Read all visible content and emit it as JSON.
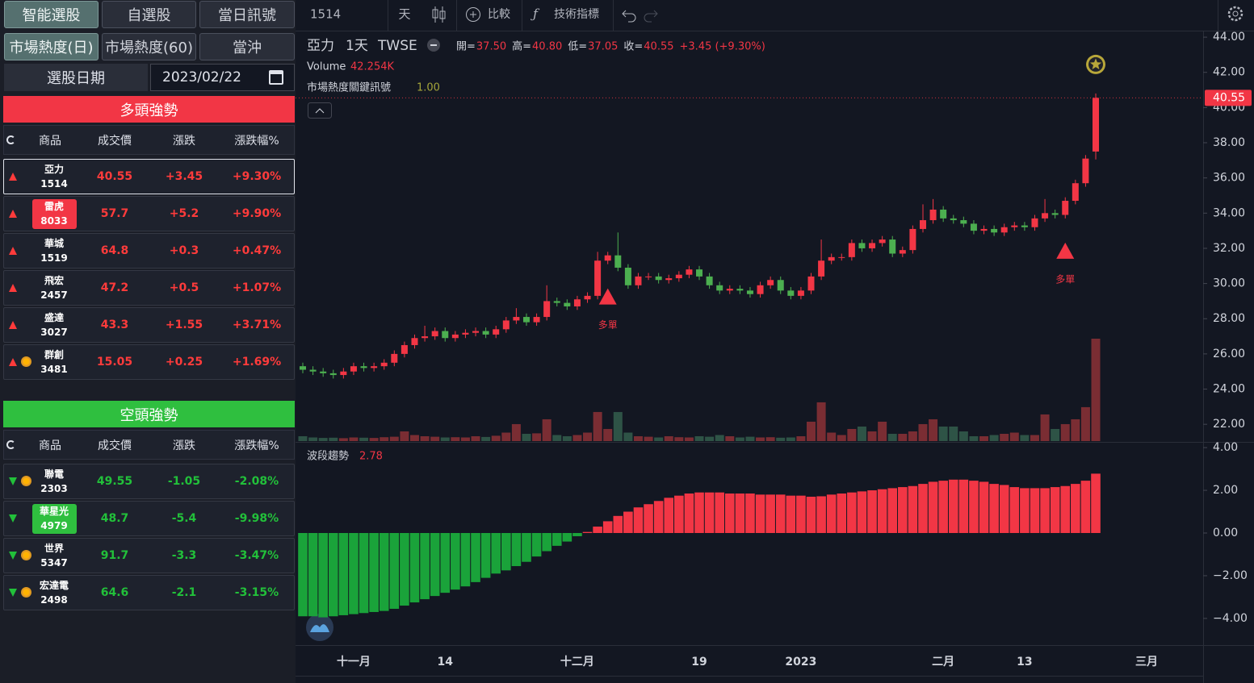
{
  "tabs": [
    {
      "label": "智能選股",
      "active": true
    },
    {
      "label": "自選股"
    },
    {
      "label": "當日訊號"
    },
    {
      "label": "市場熱度(日)",
      "active": true
    },
    {
      "label": "市場熱度(60)"
    },
    {
      "label": "當沖"
    }
  ],
  "date_picker": {
    "label": "選股日期",
    "value": "2023/02/22"
  },
  "bull": {
    "title": "多頭強勢",
    "columns": [
      "商品",
      "成交價",
      "漲跌",
      "漲跌幅%"
    ],
    "rows": [
      {
        "name": "亞力",
        "code": "1514",
        "price": "40.55",
        "change": "+3.45",
        "pct": "+9.30%",
        "selected": true
      },
      {
        "name": "雷虎",
        "code": "8033",
        "price": "57.7",
        "change": "+5.2",
        "pct": "+9.90%",
        "highlight": true
      },
      {
        "name": "華城",
        "code": "1519",
        "price": "64.8",
        "change": "+0.3",
        "pct": "+0.47%"
      },
      {
        "name": "飛宏",
        "code": "2457",
        "price": "47.2",
        "change": "+0.5",
        "pct": "+1.07%"
      },
      {
        "name": "盛達",
        "code": "3027",
        "price": "43.3",
        "change": "+1.55",
        "pct": "+3.71%"
      },
      {
        "name": "群創",
        "code": "3481",
        "price": "15.05",
        "change": "+0.25",
        "pct": "+1.69%",
        "icon": "sun"
      }
    ]
  },
  "bear": {
    "title": "空頭強勢",
    "columns": [
      "商品",
      "成交價",
      "漲跌",
      "漲跌幅%"
    ],
    "rows": [
      {
        "name": "聯電",
        "code": "2303",
        "price": "49.55",
        "change": "-1.05",
        "pct": "-2.08%",
        "icon": "sun"
      },
      {
        "name": "華星光",
        "code": "4979",
        "price": "48.7",
        "change": "-5.4",
        "pct": "-9.98%",
        "highlight": true
      },
      {
        "name": "世界",
        "code": "5347",
        "price": "91.7",
        "change": "-3.3",
        "pct": "-3.47%",
        "icon": "sun"
      },
      {
        "name": "宏達電",
        "code": "2498",
        "price": "64.6",
        "change": "-2.1",
        "pct": "-3.15%",
        "icon": "sun"
      }
    ]
  },
  "toolbar": {
    "symbol": "1514",
    "interval": "天",
    "compare": "比較",
    "indicators": "技術指標"
  },
  "chart_data": {
    "type": "candlestick",
    "legend": {
      "symbol": "亞力",
      "interval": "1天",
      "exchange": "TWSE",
      "fields": [
        {
          "label": "開=",
          "value": "37.50"
        },
        {
          "label": "高=",
          "value": "40.80"
        },
        {
          "label": "低=",
          "value": "37.05"
        },
        {
          "label": "收=",
          "value": "40.55"
        }
      ],
      "change": "+3.45 (+9.30%)"
    },
    "categories": [
      null,
      null,
      null,
      null,
      null,
      "十一月",
      null,
      null,
      null,
      null,
      null,
      null,
      null,
      null,
      "14",
      null,
      null,
      null,
      null,
      null,
      null,
      null,
      null,
      null,
      null,
      null,
      null,
      "十二月",
      null,
      null,
      null,
      null,
      null,
      null,
      null,
      null,
      null,
      null,
      null,
      "19",
      null,
      null,
      null,
      null,
      null,
      null,
      null,
      null,
      null,
      "2023",
      null,
      null,
      null,
      null,
      null,
      null,
      null,
      null,
      null,
      null,
      null,
      null,
      null,
      "二月",
      null,
      null,
      null,
      null,
      null,
      null,
      null,
      "13",
      null,
      null,
      null,
      null,
      null,
      null,
      null,
      null,
      null,
      null,
      null,
      "三月"
    ],
    "open": [
      25.3,
      25.1,
      25.0,
      24.9,
      24.8,
      25.0,
      25.3,
      25.2,
      25.3,
      25.5,
      26.0,
      26.5,
      26.9,
      27.0,
      27.3,
      26.9,
      27.1,
      27.2,
      27.3,
      27.1,
      27.4,
      27.9,
      28.1,
      27.8,
      28.1,
      29.0,
      28.9,
      28.7,
      29.1,
      29.3,
      31.3,
      31.6,
      30.9,
      29.9,
      30.4,
      30.4,
      30.2,
      30.3,
      30.5,
      30.8,
      30.4,
      29.9,
      29.6,
      29.7,
      29.6,
      29.4,
      29.9,
      30.2,
      29.6,
      29.3,
      29.6,
      30.4,
      31.3,
      31.5,
      31.5,
      32.3,
      32.0,
      32.3,
      32.5,
      31.7,
      31.9,
      33.1,
      33.6,
      34.2,
      33.7,
      33.6,
      33.4,
      33.0,
      33.1,
      32.9,
      33.2,
      33.3,
      33.2,
      33.7,
      34.0,
      33.9,
      34.7,
      35.7,
      37.5,
      null,
      null,
      null,
      null,
      null
    ],
    "high": [
      25.5,
      25.3,
      25.2,
      25.1,
      25.2,
      25.5,
      25.5,
      25.5,
      25.7,
      26.2,
      26.7,
      27.1,
      27.6,
      27.5,
      27.5,
      27.3,
      27.4,
      27.5,
      27.5,
      27.6,
      28.1,
      28.6,
      28.3,
      28.3,
      29.9,
      29.2,
      29.1,
      29.3,
      29.5,
      31.8,
      31.8,
      32.9,
      31.1,
      30.6,
      30.6,
      30.6,
      30.5,
      30.7,
      31.0,
      31.0,
      30.6,
      30.1,
      29.9,
      29.9,
      29.8,
      30.1,
      30.4,
      30.4,
      29.8,
      29.8,
      30.6,
      32.5,
      31.7,
      31.7,
      32.5,
      32.5,
      32.5,
      32.7,
      32.7,
      32.1,
      33.3,
      34.5,
      34.8,
      34.4,
      33.9,
      33.8,
      33.6,
      33.3,
      33.3,
      33.4,
      33.5,
      33.5,
      33.9,
      34.8,
      34.2,
      34.9,
      35.9,
      37.3,
      40.8,
      null,
      null,
      null,
      null,
      null
    ],
    "low": [
      24.9,
      24.8,
      24.7,
      24.6,
      24.6,
      24.8,
      25.0,
      25.0,
      25.1,
      25.3,
      25.8,
      26.3,
      26.7,
      26.8,
      26.7,
      26.7,
      26.9,
      27.0,
      26.9,
      26.9,
      27.2,
      27.7,
      27.6,
      27.6,
      27.9,
      28.7,
      28.5,
      28.5,
      28.9,
      29.1,
      31.1,
      30.7,
      29.7,
      29.7,
      30.2,
      30.0,
      30.0,
      30.1,
      30.3,
      30.2,
      29.7,
      29.4,
      29.4,
      29.4,
      29.2,
      29.2,
      29.7,
      29.4,
      29.1,
      29.1,
      29.4,
      30.2,
      31.1,
      31.3,
      31.3,
      31.8,
      31.8,
      32.1,
      31.5,
      31.5,
      31.7,
      32.9,
      33.4,
      33.5,
      33.4,
      33.2,
      32.8,
      32.8,
      32.7,
      32.7,
      33.0,
      33.0,
      33.0,
      33.5,
      33.7,
      33.7,
      34.5,
      35.5,
      37.05,
      null,
      null,
      null,
      null,
      null
    ],
    "close": [
      25.1,
      25.0,
      24.9,
      24.8,
      25.0,
      25.3,
      25.2,
      25.3,
      25.5,
      26.0,
      26.5,
      26.9,
      27.0,
      27.3,
      26.9,
      27.1,
      27.2,
      27.3,
      27.1,
      27.4,
      27.9,
      28.1,
      27.8,
      28.1,
      29.0,
      28.9,
      28.7,
      29.1,
      29.3,
      31.3,
      31.6,
      30.9,
      29.9,
      30.4,
      30.4,
      30.2,
      30.3,
      30.5,
      30.8,
      30.4,
      29.9,
      29.6,
      29.7,
      29.6,
      29.4,
      29.9,
      30.2,
      29.6,
      29.3,
      29.6,
      30.4,
      31.3,
      31.5,
      31.5,
      32.3,
      32.0,
      32.3,
      32.5,
      31.7,
      31.9,
      33.1,
      33.6,
      34.2,
      33.7,
      33.6,
      33.4,
      33.0,
      33.1,
      32.9,
      33.2,
      33.3,
      33.2,
      33.7,
      34.0,
      33.9,
      34.7,
      35.7,
      37.1,
      40.55,
      null,
      null,
      null,
      null,
      null
    ],
    "up_color": "#f23645",
    "down_color": "#4caf50",
    "ylim": [
      21.0,
      44.37
    ],
    "yticks": [
      {
        "value": 44,
        "label": "44.00"
      },
      {
        "value": 42,
        "label": "42.00"
      },
      {
        "value": 40,
        "label": "40.00"
      },
      {
        "value": 38,
        "label": "38.00"
      },
      {
        "value": 36,
        "label": "36.00"
      },
      {
        "value": 34,
        "label": "34.00"
      },
      {
        "value": 32,
        "label": "32.00"
      },
      {
        "value": 30,
        "label": "30.00"
      },
      {
        "value": 28,
        "label": "28.00"
      },
      {
        "value": 26,
        "label": "26.00"
      },
      {
        "value": 24,
        "label": "24.00"
      },
      {
        "value": 22,
        "label": "22.00"
      }
    ],
    "signals": [
      null,
      null,
      null,
      null,
      null,
      null,
      null,
      null,
      null,
      null,
      null,
      null,
      null,
      null,
      null,
      null,
      null,
      null,
      null,
      null,
      null,
      null,
      null,
      null,
      null,
      null,
      null,
      null,
      null,
      null,
      "多單",
      null,
      null,
      null,
      null,
      null,
      null,
      null,
      null,
      null,
      null,
      null,
      null,
      null,
      null,
      null,
      null,
      null,
      null,
      null,
      null,
      null,
      null,
      null,
      null,
      null,
      null,
      null,
      null,
      null,
      null,
      null,
      null,
      null,
      null,
      null,
      null,
      null,
      null,
      null,
      null,
      null,
      null,
      null,
      null,
      "多單",
      null,
      null,
      null,
      null,
      null,
      null,
      null,
      null
    ],
    "signal_indicator": {
      "name": "市場熱度關鍵訊號",
      "value": "1.00"
    },
    "volume": {
      "name": "Volume",
      "label": "42.254K",
      "up_color": "#7a2d33",
      "down_color": "#2e5346",
      "values": [
        2.0,
        1.5,
        1.3,
        1.4,
        1.2,
        1.5,
        1.4,
        1.3,
        1.6,
        1.8,
        4.0,
        2.5,
        2.0,
        1.8,
        1.5,
        1.6,
        1.5,
        2.0,
        1.7,
        2.2,
        3.5,
        7.0,
        3.0,
        3.2,
        9.0,
        2.5,
        2.0,
        2.5,
        3.5,
        12.0,
        5.0,
        12.0,
        3.5,
        2.0,
        1.8,
        1.5,
        2.0,
        1.6,
        1.5,
        2.0,
        1.8,
        2.5,
        2.0,
        1.5,
        1.8,
        1.5,
        1.6,
        1.4,
        1.5,
        2.0,
        8.0,
        16.0,
        3.5,
        2.5,
        5.0,
        6.0,
        4.0,
        8.0,
        3.0,
        3.0,
        4.0,
        7.0,
        9.0,
        6.0,
        6.0,
        4.0,
        2.0,
        2.0,
        2.5,
        3.0,
        3.5,
        2.5,
        2.5,
        11.0,
        5.0,
        7.0,
        9.0,
        14.0,
        42.254,
        null,
        null,
        null,
        null,
        null
      ]
    },
    "oscillator": {
      "name": "波段趨勢",
      "up_color": "#f23645",
      "down_color": "#1aa33a",
      "ylim": [
        -5.25,
        4.23
      ],
      "yticks": [
        {
          "value": 4,
          "label": "4.00"
        },
        {
          "value": 2,
          "label": "2.00"
        },
        {
          "value": 0,
          "label": "0.00"
        },
        {
          "value": -2,
          "label": "−2.00"
        },
        {
          "value": -4,
          "label": "−4.00"
        }
      ],
      "values": [
        -3.9,
        -3.9,
        -3.95,
        -3.9,
        -3.85,
        -3.8,
        -3.75,
        -3.7,
        -3.65,
        -3.55,
        -3.4,
        -3.25,
        -3.1,
        -2.95,
        -2.8,
        -2.65,
        -2.5,
        -2.3,
        -2.1,
        -1.9,
        -1.75,
        -1.55,
        -1.35,
        -1.1,
        -0.85,
        -0.6,
        -0.4,
        -0.15,
        0.05,
        0.3,
        0.55,
        0.8,
        1.0,
        1.2,
        1.35,
        1.5,
        1.65,
        1.75,
        1.85,
        1.9,
        1.9,
        1.9,
        1.85,
        1.85,
        1.85,
        1.8,
        1.8,
        1.8,
        1.75,
        1.75,
        1.7,
        1.72,
        1.8,
        1.85,
        1.9,
        1.95,
        2.0,
        2.05,
        2.1,
        2.15,
        2.2,
        2.3,
        2.4,
        2.45,
        2.5,
        2.5,
        2.45,
        2.4,
        2.3,
        2.25,
        2.15,
        2.1,
        2.1,
        2.1,
        2.15,
        2.2,
        2.3,
        2.45,
        2.78,
        null,
        null,
        null,
        null,
        null
      ]
    }
  }
}
